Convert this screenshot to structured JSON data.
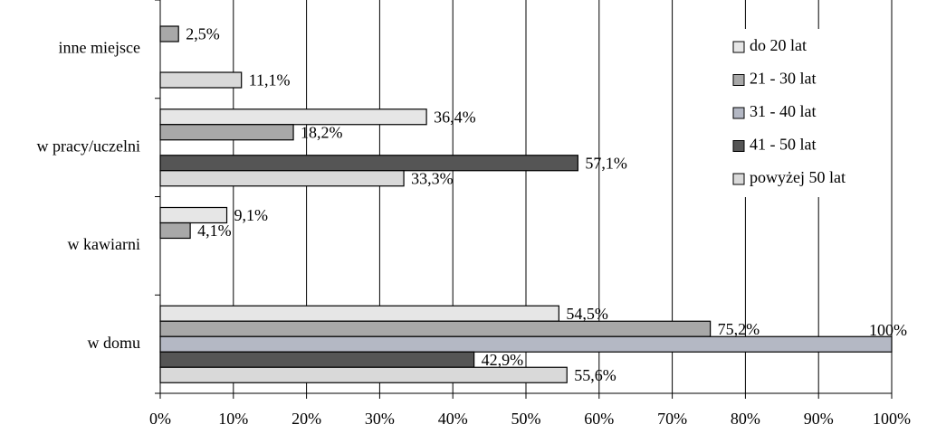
{
  "chart_data": {
    "type": "hbar",
    "categories": [
      "inne miejsce",
      "w pracy/uczelni",
      "w kawiarni",
      "w domu"
    ],
    "series": [
      {
        "name": "do 20 lat",
        "color": "#e6e6e6",
        "values": [
          null,
          36.4,
          9.1,
          54.5
        ],
        "value_labels": [
          null,
          "36,4%",
          "9,1%",
          "54,5%"
        ]
      },
      {
        "name": "21 - 30 lat",
        "color": "#a8a8a8",
        "values": [
          2.5,
          18.2,
          4.1,
          75.2
        ],
        "value_labels": [
          "2,5%",
          "18,2%",
          "4,1%",
          "75,2%"
        ]
      },
      {
        "name": "31 - 40 lat",
        "color": "#b4b8c4",
        "values": [
          null,
          null,
          null,
          100
        ],
        "value_labels": [
          null,
          null,
          null,
          "100%"
        ]
      },
      {
        "name": "41 - 50 lat",
        "color": "#555555",
        "values": [
          null,
          57.1,
          null,
          42.9
        ],
        "value_labels": [
          null,
          "57,1%",
          null,
          "42,9%"
        ]
      },
      {
        "name": "powyżej 50 lat",
        "color": "#d9d9d9",
        "values": [
          11.1,
          33.3,
          null,
          55.6
        ],
        "value_labels": [
          "11,1%",
          "33,3%",
          null,
          "55,6%"
        ]
      }
    ],
    "xlim": [
      0,
      100
    ],
    "xticks": [
      {
        "value": 0,
        "label": "0%"
      },
      {
        "value": 10,
        "label": "10%"
      },
      {
        "value": 20,
        "label": "20%"
      },
      {
        "value": 30,
        "label": "30%"
      },
      {
        "value": 40,
        "label": "40%"
      },
      {
        "value": 50,
        "label": "50%"
      },
      {
        "value": 60,
        "label": "60%"
      },
      {
        "value": 70,
        "label": "70%"
      },
      {
        "value": 80,
        "label": "80%"
      },
      {
        "value": 90,
        "label": "90%"
      },
      {
        "value": 100,
        "label": "100%"
      }
    ],
    "grid": true
  }
}
